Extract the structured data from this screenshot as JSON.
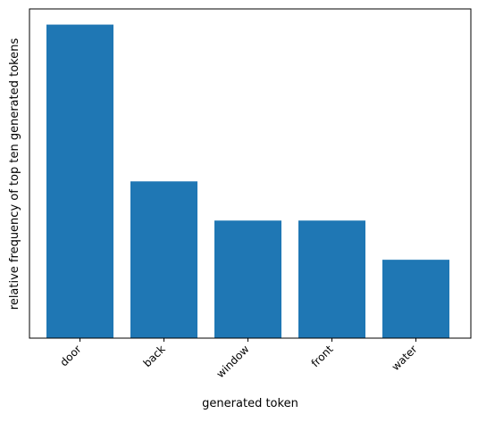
{
  "chart_data": {
    "type": "bar",
    "title": "",
    "xlabel": "generated token",
    "ylabel": "relative frequency of top ten generated tokens",
    "categories": [
      "door",
      "back",
      "window",
      "front",
      "water"
    ],
    "values": [
      8,
      4,
      3,
      3,
      2
    ],
    "ylim": [
      0,
      8.4
    ],
    "yticks_visible": false,
    "grid": false,
    "legend": "none",
    "bar_color": "#1f77b4"
  }
}
